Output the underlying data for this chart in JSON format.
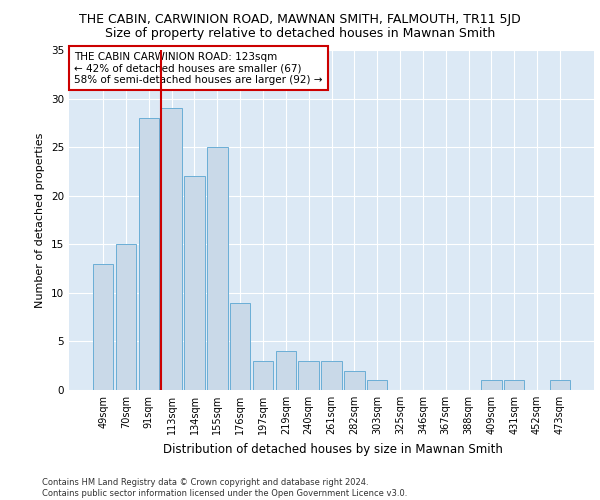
{
  "title": "THE CABIN, CARWINION ROAD, MAWNAN SMITH, FALMOUTH, TR11 5JD",
  "subtitle": "Size of property relative to detached houses in Mawnan Smith",
  "xlabel": "Distribution of detached houses by size in Mawnan Smith",
  "ylabel": "Number of detached properties",
  "categories": [
    "49sqm",
    "70sqm",
    "91sqm",
    "113sqm",
    "134sqm",
    "155sqm",
    "176sqm",
    "197sqm",
    "219sqm",
    "240sqm",
    "261sqm",
    "282sqm",
    "303sqm",
    "325sqm",
    "346sqm",
    "367sqm",
    "388sqm",
    "409sqm",
    "431sqm",
    "452sqm",
    "473sqm"
  ],
  "values": [
    13,
    15,
    28,
    29,
    22,
    25,
    9,
    3,
    4,
    3,
    3,
    2,
    1,
    0,
    0,
    0,
    0,
    1,
    1,
    0,
    1
  ],
  "bar_color": "#c9d9e8",
  "bar_edgecolor": "#6aaed6",
  "vline_x_index": 3,
  "vline_color": "#cc0000",
  "annotation_text": "THE CABIN CARWINION ROAD: 123sqm\n← 42% of detached houses are smaller (67)\n58% of semi-detached houses are larger (92) →",
  "annotation_box_edgecolor": "#cc0000",
  "ylim": [
    0,
    35
  ],
  "yticks": [
    0,
    5,
    10,
    15,
    20,
    25,
    30,
    35
  ],
  "background_color": "#dce9f5",
  "footer_text": "Contains HM Land Registry data © Crown copyright and database right 2024.\nContains public sector information licensed under the Open Government Licence v3.0.",
  "title_fontsize": 9,
  "subtitle_fontsize": 9,
  "tick_fontsize": 7,
  "ylabel_fontsize": 8,
  "xlabel_fontsize": 8.5,
  "annotation_fontsize": 7.5,
  "footer_fontsize": 6
}
